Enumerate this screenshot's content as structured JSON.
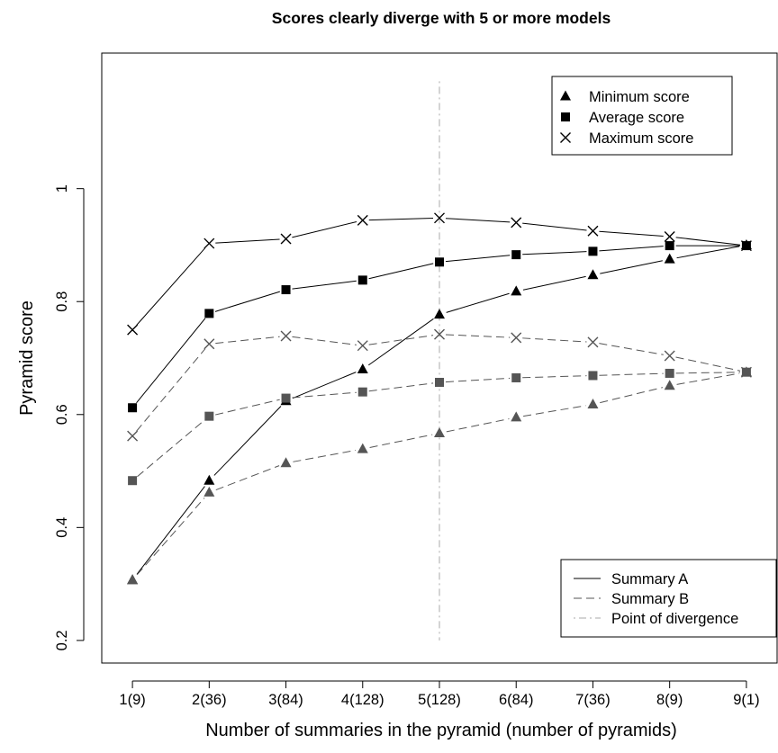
{
  "chart_data": {
    "type": "line",
    "title": "Scores clearly diverge with 5 or more models",
    "xlabel": "Number of summaries in the pyramid (number of pyramids)",
    "ylabel": "Pyramid score",
    "categories": [
      "1(9)",
      "2(36)",
      "3(84)",
      "4(128)",
      "5(128)",
      "6(84)",
      "7(36)",
      "8(9)",
      "9(1)"
    ],
    "yticks": [
      "0.2",
      "0.4",
      "0.6",
      "0.8",
      "1"
    ],
    "ytick_values": [
      0.2,
      0.4,
      0.6,
      0.8,
      1.0
    ],
    "ylim": [
      0.16,
      1.24
    ],
    "xlim": [
      0.6,
      9.4
    ],
    "grid": false,
    "divergence_x": 5,
    "divergence_y": [
      0.2,
      1.19
    ],
    "series": [
      {
        "summary": "A",
        "stat": "min",
        "values": [
          0.307,
          0.483,
          0.624,
          0.68,
          0.777,
          0.818,
          0.847,
          0.875,
          0.9
        ]
      },
      {
        "summary": "A",
        "stat": "avg",
        "values": [
          0.612,
          0.779,
          0.821,
          0.838,
          0.87,
          0.883,
          0.889,
          0.899,
          0.899
        ]
      },
      {
        "summary": "A",
        "stat": "max",
        "values": [
          0.75,
          0.903,
          0.911,
          0.944,
          0.948,
          0.94,
          0.925,
          0.915,
          0.899
        ]
      },
      {
        "summary": "B",
        "stat": "min",
        "values": [
          0.307,
          0.462,
          0.514,
          0.539,
          0.567,
          0.595,
          0.618,
          0.651,
          0.675
        ]
      },
      {
        "summary": "B",
        "stat": "avg",
        "values": [
          0.483,
          0.597,
          0.629,
          0.64,
          0.657,
          0.665,
          0.669,
          0.673,
          0.675
        ]
      },
      {
        "summary": "B",
        "stat": "max",
        "values": [
          0.562,
          0.725,
          0.739,
          0.722,
          0.742,
          0.736,
          0.728,
          0.704,
          0.675
        ]
      }
    ],
    "legend_markers": {
      "placement": "top-right",
      "entries": [
        {
          "label": "Minimum score",
          "marker": "triangle"
        },
        {
          "label": "Average score",
          "marker": "square"
        },
        {
          "label": "Maximum score",
          "marker": "cross"
        }
      ]
    },
    "legend_lines": {
      "placement": "bottom-right",
      "entries": [
        {
          "label": "Summary A",
          "line": "solid"
        },
        {
          "label": "Summary B",
          "line": "dashed"
        },
        {
          "label": "Point of divergence",
          "line": "dotdash"
        }
      ]
    },
    "colors": {
      "summary_a": "#000000",
      "summary_b": "#555555",
      "divergence": "#aaaaaa",
      "line_a": "#000000",
      "line_b": "#555555"
    }
  }
}
